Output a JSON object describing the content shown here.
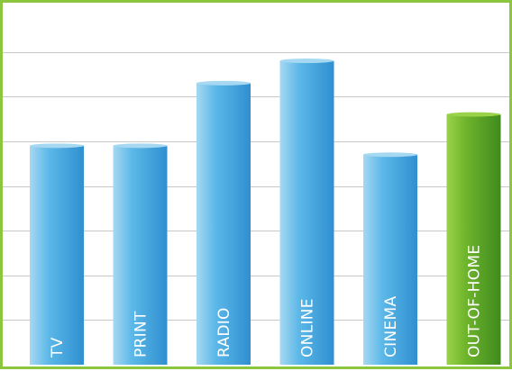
{
  "chart_data": {
    "type": "bar",
    "categories": [
      "TV",
      "PRINT",
      "RADIO",
      "ONLINE",
      "CINEMA",
      "OUT-OF-HOME"
    ],
    "values": [
      4.9,
      4.9,
      6.3,
      6.8,
      4.7,
      5.6
    ],
    "ylim": [
      0,
      8
    ],
    "grid": true,
    "grid_lines": 7,
    "title": "",
    "xlabel": "",
    "ylabel": "",
    "highlight_category": "OUT-OF-HOME",
    "colors": {
      "frame": "#8cc63f",
      "grid": "#c8c8c8",
      "bar_light": "#a6d8f2",
      "bar_mid": "#5cb8e8",
      "bar_dark": "#2f8fd0",
      "highlight_light": "#9ad24a",
      "highlight_mid": "#6fb52c",
      "highlight_dark": "#3f8a1e",
      "label": "#ffffff"
    }
  }
}
